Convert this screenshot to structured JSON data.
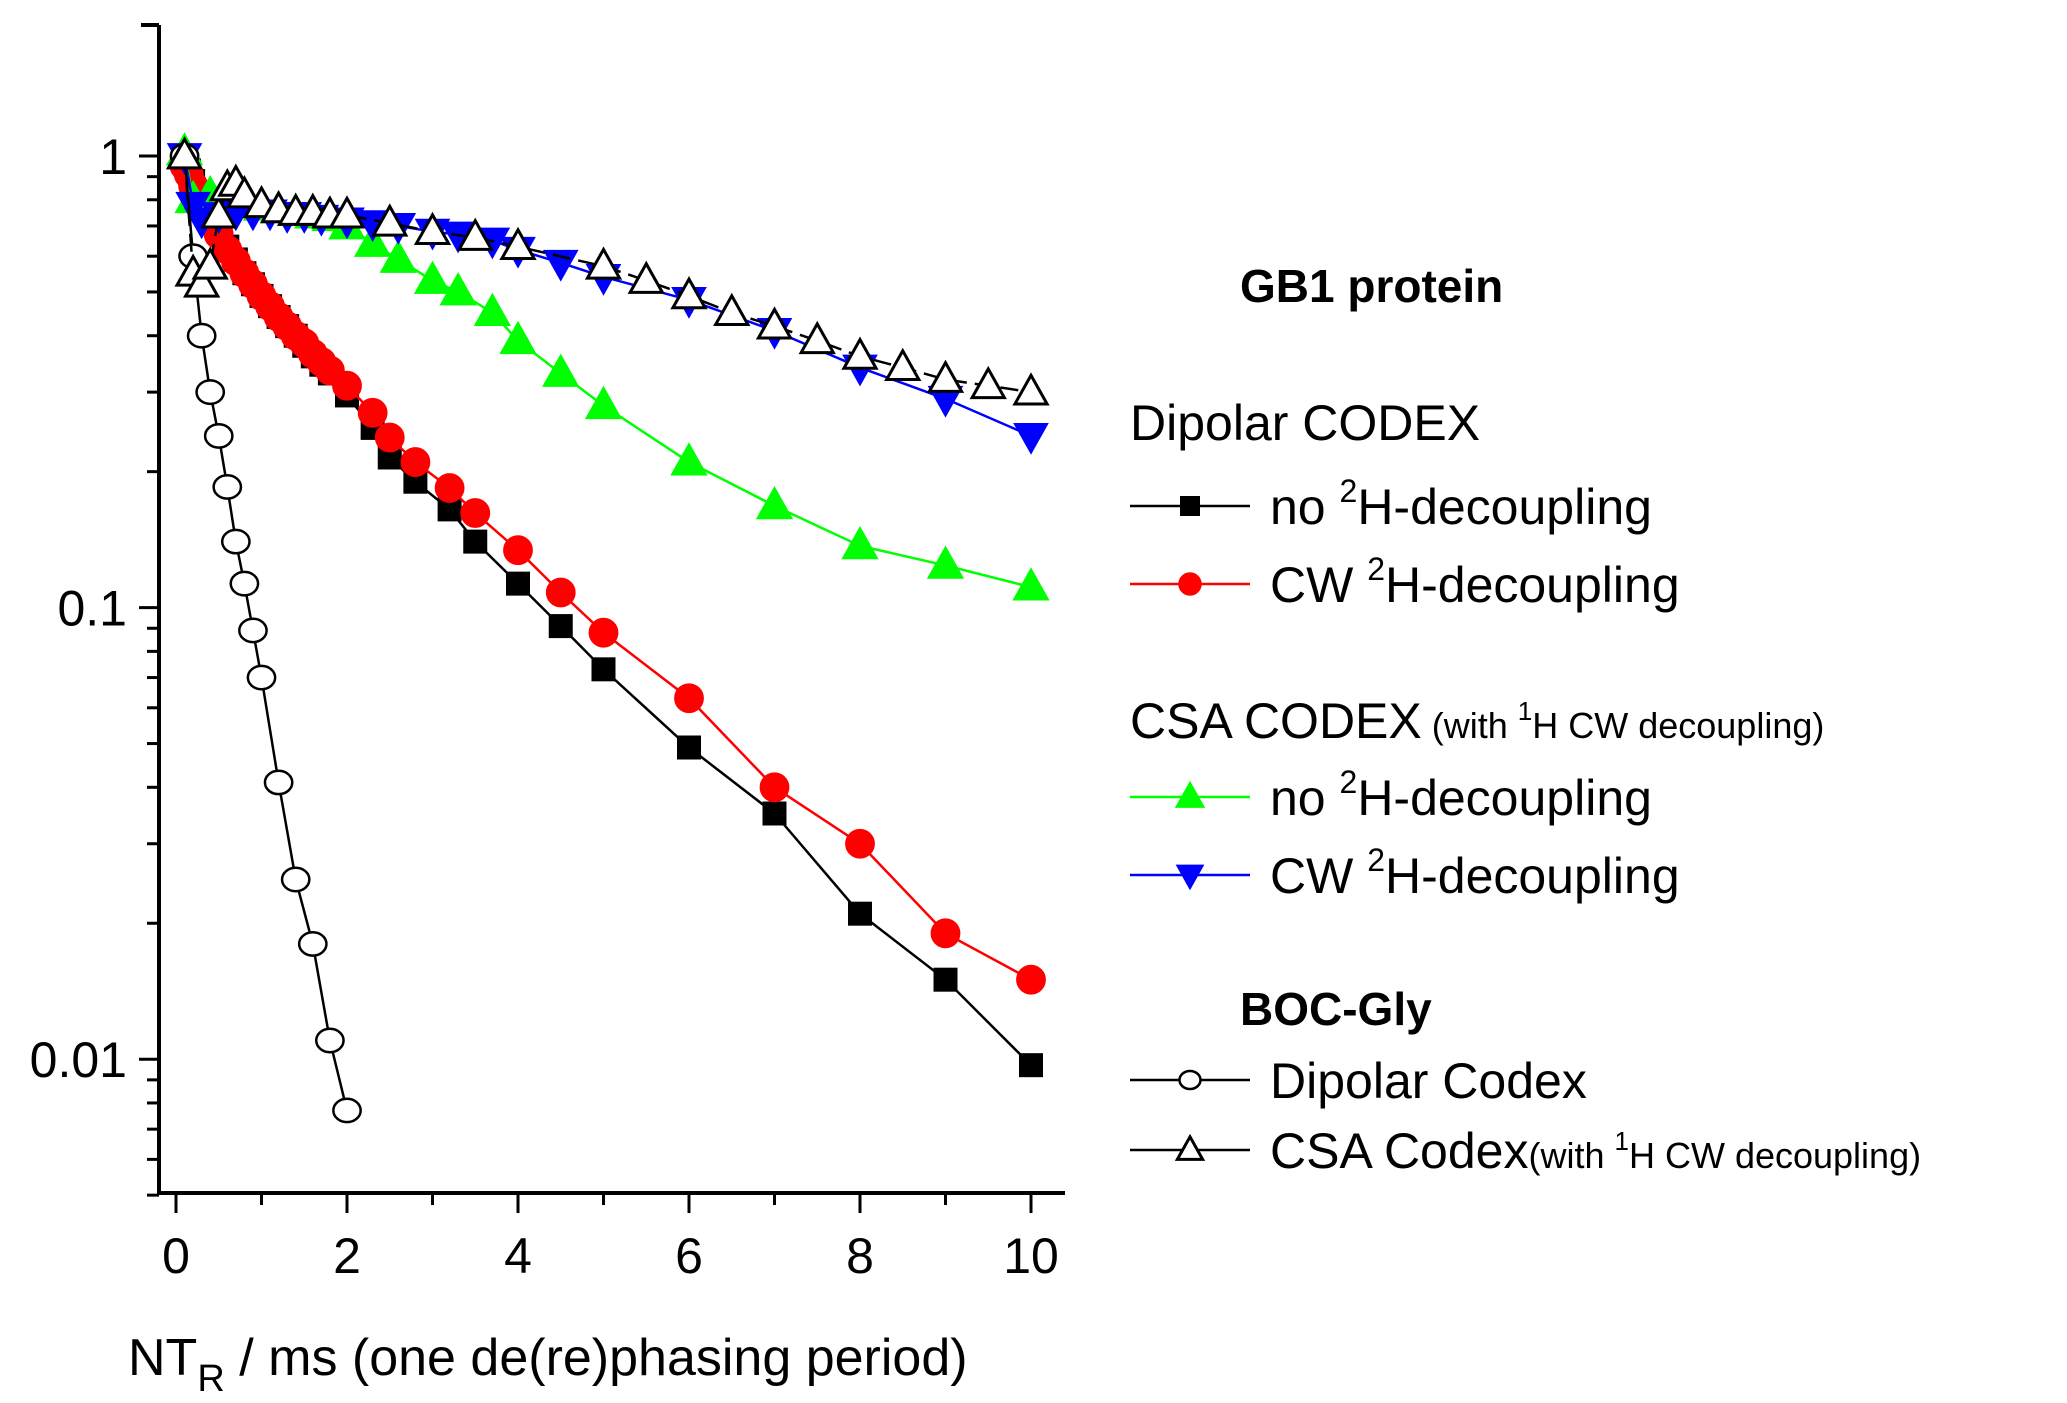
{
  "chart_data": {
    "type": "line",
    "title": "",
    "xlabel": "NT_R / ms (one de(re)phasing period)",
    "xlabel_parts": {
      "main": "NT",
      "sub": "R",
      "rest": " / ms (one de(re)phasing period)"
    },
    "ylabel": "",
    "yscale": "log",
    "xlim": [
      -0.2,
      10.4
    ],
    "ylim": [
      0.005,
      1.95
    ],
    "x_ticks": [
      "0",
      "2",
      "4",
      "6",
      "8",
      "10"
    ],
    "x_tick_values": [
      0,
      2,
      4,
      6,
      8,
      10
    ],
    "y_ticks": [
      "0.01",
      "0.1",
      "1"
    ],
    "y_tick_values": [
      0.01,
      0.1,
      1
    ],
    "grid": false,
    "legend_position": "right",
    "legend_groups": [
      {
        "heading": "GB1 protein",
        "bold": true
      },
      {
        "heading": "Dipolar CODEX",
        "bold": false,
        "series": [
          0,
          1
        ]
      },
      {
        "heading": "CSA CODEX",
        "note": "(with ¹H CW decoupling)",
        "bold": false,
        "series": [
          2,
          3
        ]
      },
      {
        "heading": "BOC-Gly",
        "bold": true,
        "series": [
          4,
          5
        ]
      }
    ],
    "series": [
      {
        "name": "no ²H-decoupling",
        "label_parts": [
          "no ",
          "2",
          "H-decoupling",
          ""
        ],
        "group": "Dipolar CODEX",
        "color": "#000000",
        "marker": "square",
        "filled": true,
        "dashed": false,
        "x": [
          0.1,
          0.15,
          0.2,
          0.3,
          0.4,
          0.5,
          0.6,
          0.7,
          0.8,
          0.9,
          1.0,
          1.1,
          1.2,
          1.3,
          1.4,
          1.5,
          1.6,
          1.7,
          1.8,
          2.0,
          2.3,
          2.5,
          2.8,
          3.2,
          3.5,
          4,
          4.5,
          5,
          6,
          7,
          8,
          9,
          10
        ],
        "y": [
          0.97,
          0.93,
          0.88,
          0.8,
          0.74,
          0.68,
          0.63,
          0.59,
          0.55,
          0.52,
          0.49,
          0.465,
          0.44,
          0.42,
          0.4,
          0.38,
          0.36,
          0.345,
          0.33,
          0.295,
          0.25,
          0.215,
          0.19,
          0.165,
          0.14,
          0.113,
          0.091,
          0.073,
          0.049,
          0.035,
          0.021,
          0.015,
          0.0097
        ]
      },
      {
        "name": "CW ²H-decoupling",
        "label_parts": [
          "CW ",
          "2",
          "H-decoupling",
          ""
        ],
        "group": "Dipolar CODEX",
        "color": "#ff0000",
        "marker": "circle",
        "filled": true,
        "dashed": false,
        "x": [
          0.1,
          0.15,
          0.2,
          0.3,
          0.4,
          0.5,
          0.6,
          0.7,
          0.8,
          0.9,
          1.0,
          1.1,
          1.2,
          1.3,
          1.4,
          1.5,
          1.6,
          1.7,
          1.8,
          2.0,
          2.3,
          2.5,
          2.8,
          3.2,
          3.5,
          4,
          4.5,
          5,
          6,
          7,
          8,
          9,
          10
        ],
        "y": [
          0.95,
          0.91,
          0.86,
          0.79,
          0.73,
          0.67,
          0.62,
          0.585,
          0.55,
          0.52,
          0.49,
          0.465,
          0.44,
          0.42,
          0.4,
          0.385,
          0.365,
          0.35,
          0.335,
          0.31,
          0.27,
          0.238,
          0.21,
          0.184,
          0.162,
          0.134,
          0.108,
          0.088,
          0.063,
          0.04,
          0.03,
          0.019,
          0.015
        ]
      },
      {
        "name": "no ²H-decoupling",
        "label_parts": [
          "no ",
          "2",
          "H-decoupling",
          ""
        ],
        "group": "CSA CODEX",
        "color": "#00ff00",
        "marker": "triangle-up",
        "filled": true,
        "dashed": false,
        "x": [
          0.1,
          0.2,
          0.4,
          0.6,
          0.8,
          1.0,
          1.2,
          1.4,
          1.6,
          1.8,
          2.0,
          2.3,
          2.6,
          3.0,
          3.3,
          3.7,
          4.0,
          4.5,
          5,
          6,
          7,
          8,
          9,
          10
        ],
        "y": [
          1.02,
          0.8,
          0.82,
          0.8,
          0.78,
          0.77,
          0.76,
          0.75,
          0.74,
          0.73,
          0.7,
          0.64,
          0.59,
          0.53,
          0.5,
          0.45,
          0.39,
          0.33,
          0.28,
          0.21,
          0.168,
          0.137,
          0.124,
          0.111
        ]
      },
      {
        "name": "CW ²H-decoupling",
        "label_parts": [
          "CW ",
          "2",
          "H-decoupling",
          ""
        ],
        "group": "CSA CODEX",
        "color": "#0000ff",
        "marker": "triangle-down",
        "filled": true,
        "dashed": false,
        "x": [
          0.1,
          0.2,
          0.3,
          0.5,
          0.7,
          0.9,
          1.1,
          1.3,
          1.5,
          1.7,
          2.0,
          2.3,
          2.6,
          3.0,
          3.3,
          3.7,
          4.0,
          4.5,
          5,
          6,
          7,
          8,
          9,
          10
        ],
        "y": [
          1.0,
          0.78,
          0.72,
          0.74,
          0.75,
          0.75,
          0.75,
          0.74,
          0.74,
          0.73,
          0.72,
          0.71,
          0.7,
          0.68,
          0.67,
          0.65,
          0.62,
          0.58,
          0.54,
          0.48,
          0.41,
          0.34,
          0.29,
          0.24
        ]
      },
      {
        "name": "Dipolar Codex",
        "label_parts": [
          "Dipolar Codex",
          "",
          "",
          ""
        ],
        "group": "BOC-Gly",
        "color": "#000000",
        "marker": "circle",
        "filled": false,
        "dashed": false,
        "x": [
          0.1,
          0.2,
          0.3,
          0.4,
          0.5,
          0.6,
          0.7,
          0.8,
          0.9,
          1.0,
          1.2,
          1.4,
          1.6,
          1.8,
          2.0
        ],
        "y": [
          1.0,
          0.6,
          0.4,
          0.3,
          0.24,
          0.185,
          0.14,
          0.113,
          0.089,
          0.07,
          0.041,
          0.025,
          0.018,
          0.011,
          0.0077
        ]
      },
      {
        "name": "CSA Codex(with ¹H CW decoupling)",
        "label_parts": [
          "CSA Codex",
          "",
          "(with ",
          "1",
          "H CW decoupling)"
        ],
        "group": "BOC-Gly",
        "color": "#000000",
        "marker": "triangle-up",
        "filled": false,
        "dashed": true,
        "x": [
          0.1,
          0.2,
          0.3,
          0.4,
          0.5,
          0.6,
          0.7,
          0.8,
          1.0,
          1.2,
          1.4,
          1.6,
          1.8,
          2.0,
          2.5,
          3.0,
          3.5,
          4,
          5,
          5.5,
          6,
          6.5,
          7,
          7.5,
          8,
          8.5,
          9,
          9.5,
          10
        ],
        "y": [
          1.0,
          0.55,
          0.52,
          0.57,
          0.74,
          0.85,
          0.87,
          0.82,
          0.78,
          0.76,
          0.75,
          0.75,
          0.74,
          0.74,
          0.71,
          0.68,
          0.66,
          0.63,
          0.57,
          0.53,
          0.49,
          0.45,
          0.42,
          0.39,
          0.36,
          0.34,
          0.32,
          0.31,
          0.3
        ]
      }
    ]
  }
}
